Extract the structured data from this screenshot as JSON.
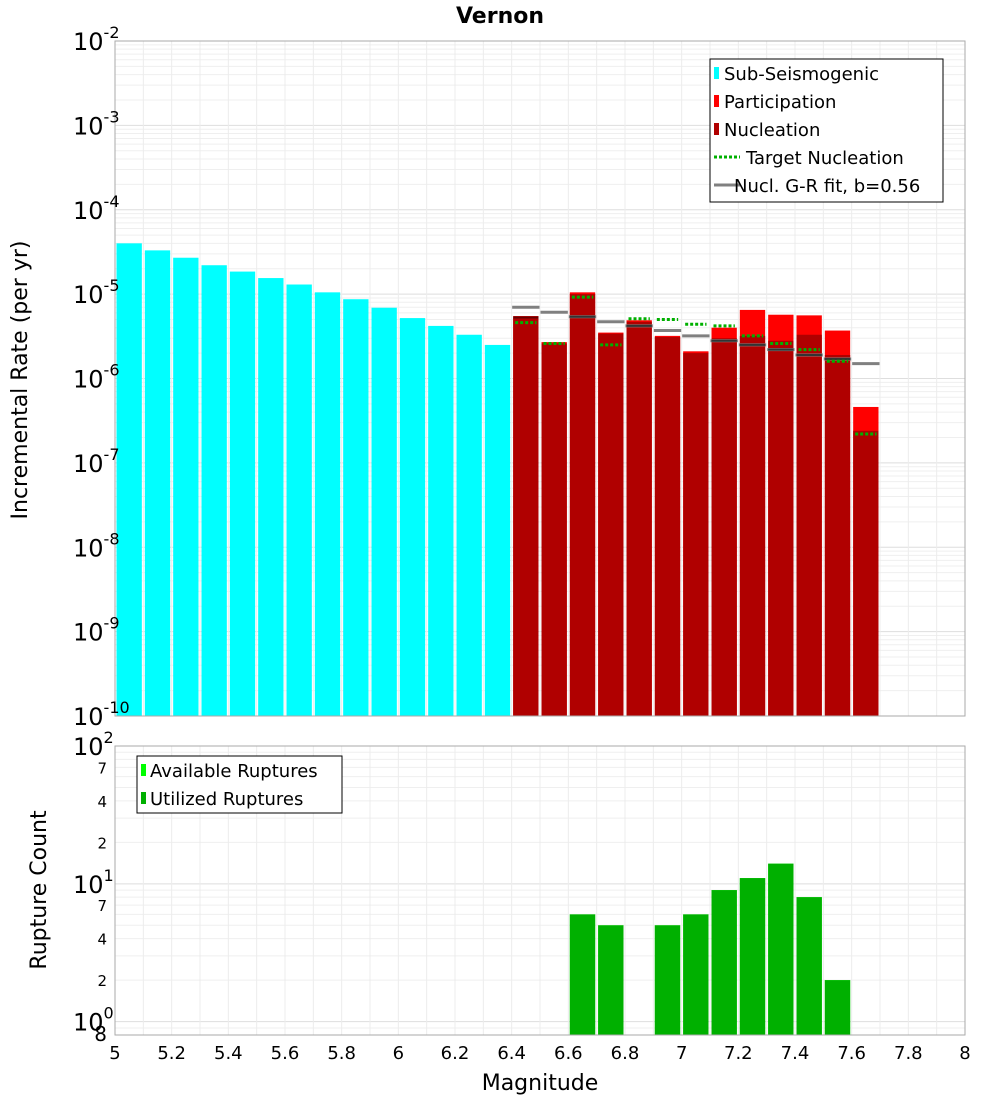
{
  "chart_data": [
    {
      "type": "bar",
      "title": "Vernon",
      "ylabel": "Incremental Rate (per yr)",
      "yscale": "log",
      "ylim": [
        1e-10,
        0.01
      ],
      "xlim": [
        5,
        8
      ],
      "y_tick_labels": [
        {
          "base": "10",
          "exp": "-10"
        },
        {
          "base": "10",
          "exp": "-9"
        },
        {
          "base": "10",
          "exp": "-8"
        },
        {
          "base": "10",
          "exp": "-7"
        },
        {
          "base": "10",
          "exp": "-6"
        },
        {
          "base": "10",
          "exp": "-5"
        },
        {
          "base": "10",
          "exp": "-4"
        },
        {
          "base": "10",
          "exp": "-3"
        },
        {
          "base": "10",
          "exp": "-2"
        }
      ],
      "grid": true,
      "legend_position": "top-right",
      "legend": [
        {
          "label": "Sub-Seismogenic",
          "color": "#00ffff",
          "style": "bar"
        },
        {
          "label": "Participation",
          "color": "#ff0000",
          "style": "bar"
        },
        {
          "label": "Nucleation",
          "color": "#b00000",
          "style": "bar"
        },
        {
          "label": "Target Nucleation",
          "color": "#00b000",
          "style": "dotted"
        },
        {
          "label": "Nucl. G-R fit, b=0.56",
          "color": "#808080",
          "style": "line"
        }
      ],
      "series": [
        {
          "name": "Sub-Seismogenic",
          "color": "#00ffff",
          "bin_centers": [
            5.05,
            5.15,
            5.25,
            5.35,
            5.45,
            5.55,
            5.65,
            5.75,
            5.85,
            5.95,
            6.05,
            6.15,
            6.25,
            6.35
          ],
          "values": [
            4e-05,
            3.3e-05,
            2.7e-05,
            2.2e-05,
            1.85e-05,
            1.55e-05,
            1.3e-05,
            1.05e-05,
            8.7e-06,
            6.9e-06,
            5.2e-06,
            4.2e-06,
            3.3e-06,
            2.5e-06
          ]
        },
        {
          "name": "Participation",
          "color": "#ff0000",
          "bin_centers": [
            6.45,
            6.55,
            6.65,
            6.75,
            6.85,
            6.95,
            7.05,
            7.15,
            7.25,
            7.35,
            7.45,
            7.55,
            7.65
          ],
          "values": [
            5.5e-06,
            2.7e-06,
            1.05e-05,
            3.5e-06,
            4.9e-06,
            3.2e-06,
            2.1e-06,
            4e-06,
            6.5e-06,
            5.7e-06,
            5.6e-06,
            3.7e-06,
            4.6e-07
          ]
        },
        {
          "name": "Nucleation",
          "color": "#b00000",
          "bin_centers": [
            6.45,
            6.55,
            6.65,
            6.75,
            6.85,
            6.95,
            7.05,
            7.15,
            7.25,
            7.35,
            7.45,
            7.55,
            7.65
          ],
          "values": [
            5.2e-06,
            2.6e-06,
            1e-05,
            3.4e-06,
            4.7e-06,
            3.1e-06,
            2e-06,
            3e-06,
            3.2e-06,
            2.8e-06,
            3.3e-06,
            1.9e-06,
            2.4e-07
          ]
        },
        {
          "name": "Target Nucleation",
          "color": "#00b000",
          "bin_centers": [
            6.45,
            6.55,
            6.65,
            6.75,
            6.85,
            6.95,
            7.05,
            7.15,
            7.25,
            7.35,
            7.45,
            7.55,
            7.65
          ],
          "values": [
            4.6e-06,
            2.6e-06,
            9.2e-06,
            2.5e-06,
            5.1e-06,
            5e-06,
            4.4e-06,
            4.2e-06,
            3.2e-06,
            2.6e-06,
            2.2e-06,
            1.6e-06,
            2.2e-07
          ]
        },
        {
          "name": "Nucl. G-R fit, b=0.56",
          "color": "#808080",
          "bin_centers": [
            6.45,
            6.55,
            6.65,
            6.75,
            6.85,
            6.95,
            7.05,
            7.15,
            7.25,
            7.35,
            7.45,
            7.55,
            7.65
          ],
          "values": [
            7e-06,
            6.1e-06,
            5.4e-06,
            4.7e-06,
            4.2e-06,
            3.7e-06,
            3.2e-06,
            2.8e-06,
            2.5e-06,
            2.2e-06,
            1.9e-06,
            1.7e-06,
            1.5e-06
          ],
          "inner_line_color": "#000000",
          "inner_line_values": [
            5.3e-06,
            null,
            5.4e-06,
            null,
            4.2e-06,
            null,
            null,
            2.8e-06,
            2.5e-06,
            2.2e-06,
            1.9e-06,
            1.7e-06,
            null
          ]
        }
      ]
    },
    {
      "type": "bar",
      "ylabel": "Rupture Count",
      "xlabel": "Magnitude",
      "yscale": "log",
      "ylim": [
        0.8,
        100
      ],
      "xlim": [
        5,
        8
      ],
      "x_ticks": [
        "5",
        "5.2",
        "5.4",
        "5.6",
        "5.8",
        "6",
        "6.2",
        "6.4",
        "6.6",
        "6.8",
        "7",
        "7.2",
        "7.4",
        "7.6",
        "7.8",
        "8"
      ],
      "y_major_ticks": [
        {
          "base": "10",
          "exp": "0"
        },
        {
          "base": "10",
          "exp": "1"
        },
        {
          "base": "10",
          "exp": "2"
        }
      ],
      "y_minor_ticks": [
        "8",
        "2",
        "4",
        "7",
        "2",
        "4",
        "7"
      ],
      "grid": true,
      "legend_position": "top-left",
      "legend": [
        {
          "label": "Available Ruptures",
          "color": "#00ff00"
        },
        {
          "label": "Utilized Ruptures",
          "color": "#00b000"
        }
      ],
      "series": [
        {
          "name": "Available Ruptures",
          "color": "#00ff00",
          "bin_centers": [
            6.65,
            6.75,
            6.95,
            7.05,
            7.15,
            7.25,
            7.35,
            7.45,
            7.55
          ],
          "values": [
            6,
            5,
            5,
            6,
            9,
            11,
            14,
            8,
            2
          ]
        },
        {
          "name": "Utilized Ruptures",
          "color": "#00b000",
          "bin_centers": [
            6.65,
            6.75,
            6.95,
            7.05,
            7.15,
            7.25,
            7.35,
            7.45,
            7.55
          ],
          "values": [
            6,
            5,
            5,
            6,
            9,
            11,
            14,
            8,
            2
          ]
        }
      ]
    }
  ]
}
